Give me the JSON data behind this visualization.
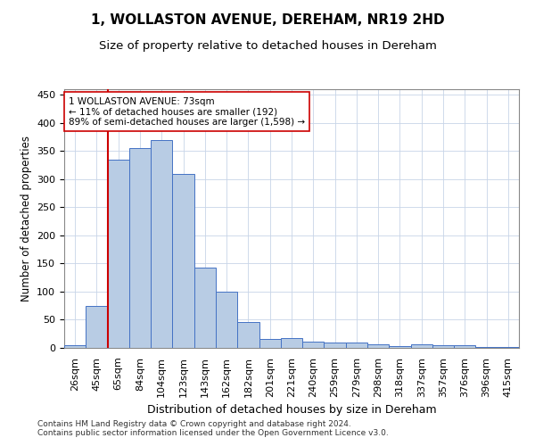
{
  "title": "1, WOLLASTON AVENUE, DEREHAM, NR19 2HD",
  "subtitle": "Size of property relative to detached houses in Dereham",
  "xlabel": "Distribution of detached houses by size in Dereham",
  "ylabel": "Number of detached properties",
  "categories": [
    "26sqm",
    "45sqm",
    "65sqm",
    "84sqm",
    "104sqm",
    "123sqm",
    "143sqm",
    "162sqm",
    "182sqm",
    "201sqm",
    "221sqm",
    "240sqm",
    "259sqm",
    "279sqm",
    "298sqm",
    "318sqm",
    "337sqm",
    "357sqm",
    "376sqm",
    "396sqm",
    "415sqm"
  ],
  "values": [
    5,
    75,
    335,
    355,
    370,
    310,
    143,
    100,
    46,
    16,
    17,
    11,
    9,
    9,
    7,
    3,
    6,
    4,
    4,
    1,
    2
  ],
  "bar_color": "#b8cce4",
  "bar_edge_color": "#4472c4",
  "property_line_x": 1.5,
  "property_line_color": "#cc0000",
  "annotation_text": "1 WOLLASTON AVENUE: 73sqm\n← 11% of detached houses are smaller (192)\n89% of semi-detached houses are larger (1,598) →",
  "annotation_box_color": "#ffffff",
  "annotation_box_edge_color": "#cc0000",
  "ylim": [
    0,
    460
  ],
  "yticks": [
    0,
    50,
    100,
    150,
    200,
    250,
    300,
    350,
    400,
    450
  ],
  "title_fontsize": 11,
  "subtitle_fontsize": 9.5,
  "xlabel_fontsize": 9,
  "ylabel_fontsize": 8.5,
  "tick_fontsize": 8,
  "annotation_fontsize": 7.5,
  "footer_text": "Contains HM Land Registry data © Crown copyright and database right 2024.\nContains public sector information licensed under the Open Government Licence v3.0.",
  "footer_fontsize": 6.5,
  "background_color": "#ffffff",
  "grid_color": "#c8d4e8"
}
